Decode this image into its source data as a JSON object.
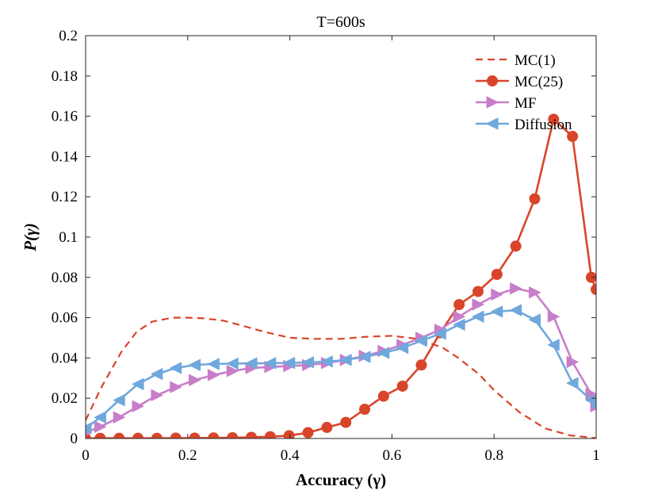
{
  "chart_data": {
    "type": "line",
    "title": "T=600s",
    "xlabel": "Accuracy (γ)",
    "ylabel": "P(γ)",
    "xlim": [
      0,
      1
    ],
    "ylim": [
      0,
      0.2
    ],
    "x_ticks": [
      0,
      0.2,
      0.4,
      0.6,
      0.8,
      1
    ],
    "x_tick_labels": [
      "0",
      "0.2",
      "0.4",
      "0.6",
      "0.8",
      "1"
    ],
    "y_ticks": [
      0,
      0.02,
      0.04,
      0.06,
      0.08,
      0.1,
      0.12,
      0.14,
      0.16,
      0.18,
      0.2
    ],
    "y_tick_labels": [
      "0",
      "0.02",
      "0.04",
      "0.06",
      "0.08",
      "0.1",
      "0.12",
      "0.14",
      "0.16",
      "0.18",
      "0.2"
    ],
    "grid": false,
    "legend_position": "top-right",
    "series": [
      {
        "name": "MC(1)",
        "style": "dashed",
        "marker": "none",
        "color": "#d9452b",
        "x": [
          0,
          0.03,
          0.07,
          0.1,
          0.13,
          0.17,
          0.2,
          0.23,
          0.27,
          0.3,
          0.35,
          0.4,
          0.45,
          0.5,
          0.55,
          0.6,
          0.65,
          0.7,
          0.73,
          0.77,
          0.8,
          0.85,
          0.9,
          0.95,
          1
        ],
        "y": [
          0.009,
          0.025,
          0.043,
          0.053,
          0.058,
          0.06,
          0.06,
          0.0597,
          0.0585,
          0.0565,
          0.053,
          0.05,
          0.0495,
          0.0495,
          0.0505,
          0.051,
          0.0495,
          0.045,
          0.04,
          0.032,
          0.024,
          0.013,
          0.005,
          0.0015,
          0.0002
        ]
      },
      {
        "name": "MC(25)",
        "style": "solid",
        "marker": "circle",
        "color": "#d9452b",
        "x": [
          0,
          0.0286,
          0.0656,
          0.1026,
          0.1396,
          0.1766,
          0.2136,
          0.2506,
          0.2876,
          0.3246,
          0.3616,
          0.3986,
          0.4356,
          0.4726,
          0.5096,
          0.5466,
          0.5836,
          0.6206,
          0.6576,
          0.6946,
          0.7316,
          0.7686,
          0.8056,
          0.8426,
          0.8796,
          0.9166,
          0.9536,
          0.9906,
          1
        ],
        "y": [
          0,
          0.0001,
          0.0001,
          0.0001,
          0.0001,
          0.0002,
          0.0002,
          0.0003,
          0.0004,
          0.0006,
          0.0009,
          0.0014,
          0.0029,
          0.0055,
          0.008,
          0.0145,
          0.021,
          0.026,
          0.0365,
          0.0525,
          0.0665,
          0.073,
          0.0815,
          0.0955,
          0.119,
          0.1585,
          0.15,
          0.08,
          0.074
        ]
      },
      {
        "name": "MF",
        "style": "solid",
        "marker": "triangle-right",
        "color": "#c77ec9",
        "x": [
          0,
          0.0286,
          0.0656,
          0.1026,
          0.1396,
          0.1766,
          0.2136,
          0.2506,
          0.2876,
          0.3246,
          0.3616,
          0.3986,
          0.4356,
          0.4726,
          0.5096,
          0.5466,
          0.5836,
          0.6206,
          0.6576,
          0.6946,
          0.7316,
          0.7686,
          0.8056,
          0.8426,
          0.8796,
          0.9166,
          0.9536,
          0.9906,
          1
        ],
        "y": [
          0.003,
          0.0058,
          0.0105,
          0.016,
          0.0215,
          0.0255,
          0.029,
          0.0315,
          0.0335,
          0.035,
          0.0355,
          0.036,
          0.0365,
          0.0375,
          0.039,
          0.041,
          0.0435,
          0.0465,
          0.05,
          0.054,
          0.0605,
          0.0665,
          0.0715,
          0.0745,
          0.0725,
          0.0605,
          0.038,
          0.022,
          0.016
        ]
      },
      {
        "name": "Diffusion",
        "style": "solid",
        "marker": "triangle-left",
        "color": "#6fa8dc",
        "x": [
          0,
          0.0286,
          0.0656,
          0.1026,
          0.1396,
          0.1766,
          0.2136,
          0.2506,
          0.2876,
          0.3246,
          0.3616,
          0.3986,
          0.4356,
          0.4726,
          0.5096,
          0.5466,
          0.5836,
          0.6206,
          0.6576,
          0.6946,
          0.7316,
          0.7686,
          0.8056,
          0.8426,
          0.8796,
          0.9166,
          0.9536,
          0.9906,
          1
        ],
        "y": [
          0.005,
          0.0105,
          0.019,
          0.027,
          0.032,
          0.035,
          0.0365,
          0.037,
          0.0372,
          0.0373,
          0.0374,
          0.0375,
          0.0378,
          0.0382,
          0.039,
          0.0405,
          0.0425,
          0.045,
          0.0485,
          0.052,
          0.0565,
          0.0605,
          0.063,
          0.0637,
          0.059,
          0.0465,
          0.0275,
          0.019,
          0.016
        ]
      }
    ]
  }
}
